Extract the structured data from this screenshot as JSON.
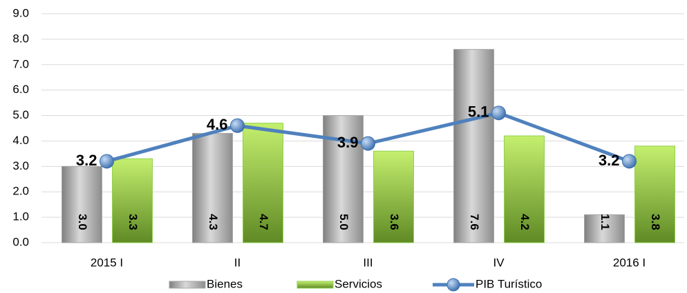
{
  "chart_data": {
    "type": "bar_line",
    "categories": [
      "2015 I",
      "II",
      "III",
      "IV",
      "2016 I"
    ],
    "series": [
      {
        "name": "Bienes",
        "type": "bar",
        "color": "#a6a6a6",
        "values": [
          3.0,
          4.3,
          5.0,
          7.6,
          1.1
        ],
        "value_labels": [
          "3.0",
          "4.3",
          "5.0",
          "7.6",
          "1.1"
        ]
      },
      {
        "name": "Servicios",
        "type": "bar",
        "color": "#92d050",
        "values": [
          3.3,
          4.7,
          3.6,
          4.2,
          3.8
        ],
        "value_labels": [
          "3.3",
          "4.7",
          "3.6",
          "4.2",
          "3.8"
        ]
      },
      {
        "name": "PIB Turístico",
        "type": "line",
        "color": "#4f81bd",
        "values": [
          3.2,
          4.6,
          3.9,
          5.1,
          3.2
        ],
        "value_labels": [
          "3.2",
          "4.6",
          "3.9",
          "5.1",
          "3.2"
        ]
      }
    ],
    "ylim": [
      0,
      9
    ],
    "yticks": [
      {
        "value": 0,
        "label": "0.0"
      },
      {
        "value": 1,
        "label": "1.0"
      },
      {
        "value": 2,
        "label": "2.0"
      },
      {
        "value": 3,
        "label": "3.0"
      },
      {
        "value": 4,
        "label": "4.0"
      },
      {
        "value": 5,
        "label": "5.0"
      },
      {
        "value": 6,
        "label": "6.0"
      },
      {
        "value": 7,
        "label": "7.0"
      },
      {
        "value": 8,
        "label": "8.0"
      },
      {
        "value": 9,
        "label": "9.0"
      }
    ],
    "grid": true,
    "legend": "bottom"
  }
}
